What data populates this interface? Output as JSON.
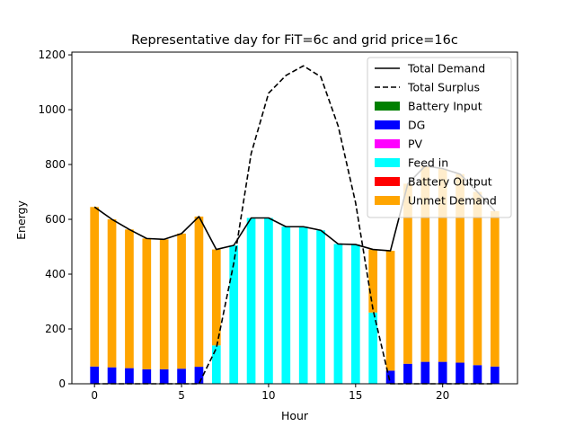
{
  "chart_data": {
    "type": "bar",
    "title": "Representative day for FiT=6c and grid price=16c",
    "xlabel": "Hour",
    "ylabel": "Energy",
    "xlim": [
      -1.3,
      24.3
    ],
    "ylim": [
      0,
      1210
    ],
    "xticks": [
      0,
      5,
      10,
      15,
      20
    ],
    "yticks": [
      0,
      200,
      400,
      600,
      800,
      1000,
      1200
    ],
    "grid": false,
    "legend_position": "top-right",
    "hours": [
      0,
      1,
      2,
      3,
      4,
      5,
      6,
      7,
      8,
      9,
      10,
      11,
      12,
      13,
      14,
      15,
      16,
      17,
      18,
      19,
      20,
      21,
      22,
      23
    ],
    "series": [
      {
        "name": "Total Demand",
        "kind": "line",
        "color": "#000000",
        "dash": "solid",
        "values": [
          645,
          600,
          563,
          530,
          527,
          548,
          610,
          490,
          505,
          605,
          605,
          573,
          573,
          560,
          510,
          508,
          490,
          485,
          730,
          795,
          785,
          765,
          700,
          630
        ]
      },
      {
        "name": "Total Surplus",
        "kind": "line",
        "color": "#000000",
        "dash": "dashed",
        "values": [
          0,
          0,
          0,
          0,
          0,
          0,
          0,
          130,
          440,
          840,
          1060,
          1125,
          1160,
          1120,
          940,
          660,
          270,
          0,
          0,
          0,
          0,
          0,
          0,
          0
        ]
      },
      {
        "name": "Battery Input",
        "kind": "bar",
        "color": "#008000",
        "values": [
          0,
          0,
          0,
          0,
          0,
          0,
          0,
          0,
          0,
          0,
          0,
          0,
          0,
          0,
          0,
          0,
          0,
          0,
          0,
          0,
          0,
          0,
          0,
          0
        ]
      },
      {
        "name": "DG",
        "kind": "bar",
        "color": "#0000ff",
        "values": [
          63,
          60,
          57,
          53,
          53,
          55,
          62,
          0,
          0,
          0,
          0,
          0,
          0,
          0,
          0,
          0,
          0,
          48,
          73,
          80,
          80,
          77,
          68,
          63
        ]
      },
      {
        "name": "PV",
        "kind": "bar",
        "color": "#ff00ff",
        "values": [
          0,
          0,
          0,
          0,
          0,
          0,
          0,
          0,
          0,
          0,
          0,
          0,
          0,
          0,
          0,
          0,
          0,
          0,
          0,
          0,
          0,
          0,
          0,
          0
        ]
      },
      {
        "name": "Feed in",
        "kind": "bar",
        "color": "#00ffff",
        "values": [
          0,
          0,
          0,
          0,
          0,
          0,
          0,
          140,
          505,
          605,
          605,
          573,
          573,
          560,
          510,
          508,
          260,
          0,
          0,
          0,
          0,
          0,
          0,
          0
        ]
      },
      {
        "name": "Battery Output",
        "kind": "bar",
        "color": "#ff0000",
        "values": [
          0,
          0,
          0,
          0,
          0,
          0,
          0,
          0,
          0,
          0,
          0,
          0,
          0,
          0,
          0,
          0,
          0,
          0,
          0,
          0,
          0,
          0,
          0,
          0
        ]
      },
      {
        "name": "Unmet Demand",
        "kind": "bar",
        "color": "#ffa500",
        "values": [
          582,
          540,
          506,
          477,
          474,
          493,
          548,
          350,
          0,
          0,
          0,
          0,
          0,
          0,
          0,
          0,
          230,
          437,
          657,
          715,
          705,
          688,
          632,
          567
        ]
      }
    ]
  }
}
